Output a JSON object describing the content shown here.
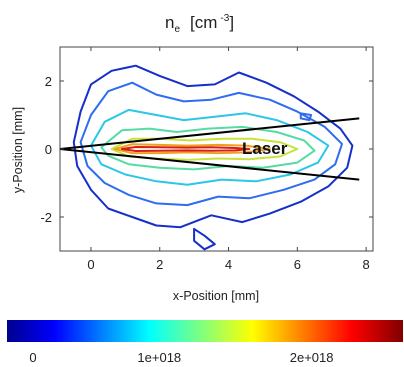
{
  "chart_data": {
    "type": "contour",
    "title_main": "n",
    "title_sub": "e",
    "title_unit": "[cm",
    "title_exp": "-3",
    "title_close": "]",
    "xlabel": "x-Position [mm]",
    "ylabel": "y-Position [mm]",
    "xlim": [
      -0.9,
      8.2
    ],
    "ylim": [
      -3.0,
      3.0
    ],
    "xticks": [
      "0",
      "2",
      "4",
      "6",
      "8"
    ],
    "xtick_values": [
      0,
      2,
      4,
      6,
      8
    ],
    "yticks": [
      "2",
      "0",
      "-2"
    ],
    "ytick_values": [
      2,
      0,
      -2
    ],
    "annotation": "Laser",
    "laser_cone": {
      "apex": [
        -0.9,
        0.0
      ],
      "upper_end": [
        7.8,
        0.9
      ],
      "lower_end": [
        7.8,
        -0.9
      ]
    },
    "colorbar": {
      "tick_labels": [
        "0",
        "1e+018",
        "2e+018"
      ],
      "tick_values": [
        0,
        1e+18,
        2e+18
      ],
      "range": [
        0,
        2.6e+18
      ]
    },
    "contours": [
      {
        "level": "outer",
        "color": "#1530c8",
        "points": [
          [
            -0.5,
            0.2
          ],
          [
            -0.3,
            1.1
          ],
          [
            0.0,
            1.9
          ],
          [
            0.6,
            2.3
          ],
          [
            1.3,
            2.45
          ],
          [
            2.0,
            2.15
          ],
          [
            2.8,
            1.85
          ],
          [
            3.6,
            1.9
          ],
          [
            4.3,
            2.25
          ],
          [
            5.1,
            1.95
          ],
          [
            5.9,
            1.55
          ],
          [
            6.6,
            1.1
          ],
          [
            7.25,
            0.6
          ],
          [
            7.6,
            0.1
          ],
          [
            7.45,
            -0.55
          ],
          [
            6.9,
            -1.1
          ],
          [
            6.1,
            -1.55
          ],
          [
            5.2,
            -1.9
          ],
          [
            4.4,
            -2.15
          ],
          [
            3.5,
            -1.95
          ],
          [
            2.6,
            -2.3
          ],
          [
            1.9,
            -2.25
          ],
          [
            1.2,
            -2.0
          ],
          [
            0.5,
            -1.75
          ],
          [
            0.0,
            -1.2
          ],
          [
            -0.4,
            -0.5
          ]
        ]
      },
      {
        "level": "2",
        "color": "#2e6cf0",
        "points": [
          [
            -0.3,
            0.2
          ],
          [
            0.0,
            1.0
          ],
          [
            0.5,
            1.7
          ],
          [
            1.2,
            1.95
          ],
          [
            1.9,
            1.6
          ],
          [
            2.7,
            1.4
          ],
          [
            3.5,
            1.45
          ],
          [
            4.3,
            1.65
          ],
          [
            5.2,
            1.45
          ],
          [
            6.0,
            1.1
          ],
          [
            6.8,
            0.65
          ],
          [
            7.3,
            0.15
          ],
          [
            7.1,
            -0.45
          ],
          [
            6.5,
            -0.9
          ],
          [
            5.6,
            -1.2
          ],
          [
            4.6,
            -1.45
          ],
          [
            3.7,
            -1.4
          ],
          [
            2.8,
            -1.65
          ],
          [
            1.9,
            -1.6
          ],
          [
            1.1,
            -1.35
          ],
          [
            0.4,
            -1.0
          ],
          [
            -0.1,
            -0.5
          ]
        ]
      },
      {
        "level": "3",
        "color": "#2bc6e8",
        "points": [
          [
            0.0,
            0.1
          ],
          [
            0.4,
            0.8
          ],
          [
            1.1,
            1.15
          ],
          [
            1.9,
            1.0
          ],
          [
            2.7,
            0.85
          ],
          [
            3.6,
            0.95
          ],
          [
            4.5,
            1.05
          ],
          [
            5.4,
            0.85
          ],
          [
            6.3,
            0.5
          ],
          [
            6.9,
            0.1
          ],
          [
            6.6,
            -0.4
          ],
          [
            5.8,
            -0.75
          ],
          [
            4.8,
            -0.95
          ],
          [
            3.8,
            -0.9
          ],
          [
            2.8,
            -1.05
          ],
          [
            1.9,
            -0.95
          ],
          [
            1.0,
            -0.75
          ],
          [
            0.3,
            -0.45
          ]
        ]
      },
      {
        "level": "4",
        "color": "#55dca4",
        "points": [
          [
            0.3,
            0.05
          ],
          [
            0.9,
            0.55
          ],
          [
            1.7,
            0.6
          ],
          [
            2.5,
            0.5
          ],
          [
            3.4,
            0.6
          ],
          [
            4.4,
            0.65
          ],
          [
            5.4,
            0.5
          ],
          [
            6.2,
            0.25
          ],
          [
            6.5,
            -0.05
          ],
          [
            6.0,
            -0.4
          ],
          [
            5.0,
            -0.55
          ],
          [
            4.0,
            -0.5
          ],
          [
            3.0,
            -0.6
          ],
          [
            2.0,
            -0.55
          ],
          [
            1.1,
            -0.45
          ],
          [
            0.5,
            -0.2
          ]
        ]
      },
      {
        "level": "5",
        "color": "#c8e23a",
        "points": [
          [
            0.6,
            0.0
          ],
          [
            1.2,
            0.3
          ],
          [
            2.0,
            0.3
          ],
          [
            2.9,
            0.25
          ],
          [
            3.8,
            0.3
          ],
          [
            4.7,
            0.3
          ],
          [
            5.5,
            0.2
          ],
          [
            6.0,
            0.0
          ],
          [
            5.5,
            -0.22
          ],
          [
            4.6,
            -0.3
          ],
          [
            3.7,
            -0.28
          ],
          [
            2.8,
            -0.32
          ],
          [
            1.9,
            -0.28
          ],
          [
            1.1,
            -0.22
          ]
        ]
      },
      {
        "level": "6",
        "color": "#f0a020",
        "points": [
          [
            0.7,
            0.0
          ],
          [
            1.2,
            0.14
          ],
          [
            2.0,
            0.12
          ],
          [
            2.8,
            0.1
          ],
          [
            3.7,
            0.12
          ],
          [
            4.5,
            0.1
          ],
          [
            5.2,
            0.0
          ],
          [
            4.5,
            -0.1
          ],
          [
            3.7,
            -0.12
          ],
          [
            2.8,
            -0.1
          ],
          [
            2.0,
            -0.12
          ],
          [
            1.2,
            -0.12
          ]
        ]
      },
      {
        "level": "core",
        "color": "#d81e10",
        "points": [
          [
            0.9,
            0.0
          ],
          [
            1.3,
            0.06
          ],
          [
            2.0,
            0.05
          ],
          [
            2.8,
            0.04
          ],
          [
            3.5,
            0.05
          ],
          [
            4.2,
            0.03
          ],
          [
            4.6,
            0.0
          ],
          [
            4.2,
            -0.04
          ],
          [
            3.5,
            -0.05
          ],
          [
            2.8,
            -0.04
          ],
          [
            2.0,
            -0.05
          ],
          [
            1.3,
            -0.06
          ]
        ]
      },
      {
        "level": "blob-a",
        "color": "#1530c8",
        "points": [
          [
            3.0,
            -2.35
          ],
          [
            3.3,
            -2.55
          ],
          [
            3.6,
            -2.8
          ],
          [
            3.3,
            -2.95
          ],
          [
            3.0,
            -2.7
          ]
        ]
      },
      {
        "level": "blob-b",
        "color": "#2e6cf0",
        "points": [
          [
            6.1,
            1.05
          ],
          [
            6.4,
            1.0
          ],
          [
            6.35,
            0.85
          ],
          [
            6.1,
            0.9
          ]
        ]
      }
    ]
  }
}
